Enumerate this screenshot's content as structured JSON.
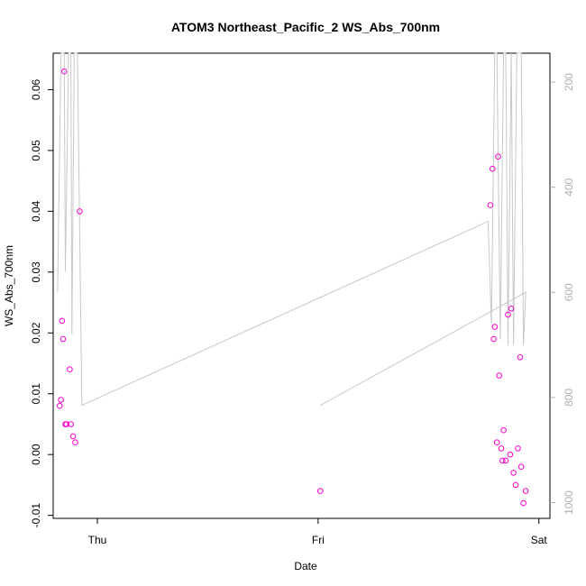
{
  "chart_data": {
    "type": "scatter",
    "title": "ATOM3 Northeast_Pacific_2 WS_Abs_700nm",
    "xlabel": "Date",
    "ylabel": "WS_Abs_700nm",
    "x_ticks": [
      "Thu",
      "Fri",
      "Sat"
    ],
    "y_ticks": [
      "-0.01",
      "0.00",
      "0.01",
      "0.02",
      "0.03",
      "0.04",
      "0.05",
      "0.06"
    ],
    "y2_ticks": [
      "200",
      "400",
      "600",
      "800",
      "1000"
    ],
    "xlim_days": [
      -0.2,
      2.05
    ],
    "ylim": [
      -0.0105,
      0.066
    ],
    "y2lim": [
      1030,
      145
    ],
    "y2_reversed": true,
    "series": [
      {
        "type": "points",
        "color": "#ff00cc",
        "points": [
          {
            "x": -0.17,
            "y": 0.008
          },
          {
            "x": -0.165,
            "y": 0.009
          },
          {
            "x": -0.16,
            "y": 0.022
          },
          {
            "x": -0.155,
            "y": 0.019
          },
          {
            "x": -0.15,
            "y": 0.063
          },
          {
            "x": -0.145,
            "y": 0.005
          },
          {
            "x": -0.14,
            "y": 0.005
          },
          {
            "x": -0.125,
            "y": 0.014
          },
          {
            "x": -0.12,
            "y": 0.005
          },
          {
            "x": -0.11,
            "y": 0.003
          },
          {
            "x": -0.1,
            "y": 0.002
          },
          {
            "x": -0.08,
            "y": 0.04
          },
          {
            "x": 1.01,
            "y": -0.006
          },
          {
            "x": 1.78,
            "y": 0.041
          },
          {
            "x": 1.79,
            "y": 0.047
          },
          {
            "x": 1.795,
            "y": 0.019
          },
          {
            "x": 1.8,
            "y": 0.021
          },
          {
            "x": 1.81,
            "y": 0.002
          },
          {
            "x": 1.815,
            "y": 0.049
          },
          {
            "x": 1.82,
            "y": 0.013
          },
          {
            "x": 1.83,
            "y": 0.001
          },
          {
            "x": 1.835,
            "y": -0.001
          },
          {
            "x": 1.84,
            "y": 0.004
          },
          {
            "x": 1.85,
            "y": -0.001
          },
          {
            "x": 1.86,
            "y": 0.023
          },
          {
            "x": 1.87,
            "y": 0.0
          },
          {
            "x": 1.875,
            "y": 0.024
          },
          {
            "x": 1.885,
            "y": -0.003
          },
          {
            "x": 1.895,
            "y": -0.005
          },
          {
            "x": 1.905,
            "y": 0.001
          },
          {
            "x": 1.915,
            "y": 0.016
          },
          {
            "x": 1.92,
            "y": -0.002
          },
          {
            "x": 1.93,
            "y": -0.008
          },
          {
            "x": 1.94,
            "y": -0.006
          }
        ]
      },
      {
        "type": "line",
        "color": "#c8c8c8",
        "axis": "right",
        "points": [
          {
            "x": -0.18,
            "y": 600
          },
          {
            "x": -0.165,
            "y": 145
          },
          {
            "x": -0.15,
            "y": 145
          },
          {
            "x": -0.145,
            "y": 560
          },
          {
            "x": -0.13,
            "y": 145
          },
          {
            "x": -0.12,
            "y": 145
          },
          {
            "x": -0.115,
            "y": 680
          },
          {
            "x": -0.105,
            "y": 145
          },
          {
            "x": -0.09,
            "y": 145
          },
          {
            "x": -0.07,
            "y": 815
          },
          {
            "x": 1.77,
            "y": 465
          },
          {
            "x": 1.785,
            "y": 660
          },
          {
            "x": 1.8,
            "y": 145
          },
          {
            "x": 1.81,
            "y": 145
          },
          {
            "x": 1.825,
            "y": 690
          },
          {
            "x": 1.84,
            "y": 145
          },
          {
            "x": 1.85,
            "y": 145
          },
          {
            "x": 1.86,
            "y": 700
          },
          {
            "x": 1.875,
            "y": 145
          },
          {
            "x": 1.885,
            "y": 700
          },
          {
            "x": 1.9,
            "y": 145
          },
          {
            "x": 1.92,
            "y": 145
          },
          {
            "x": 1.93,
            "y": 700
          },
          {
            "x": 1.94,
            "y": 600
          },
          {
            "x": 1.01,
            "y": 815
          }
        ]
      }
    ]
  }
}
